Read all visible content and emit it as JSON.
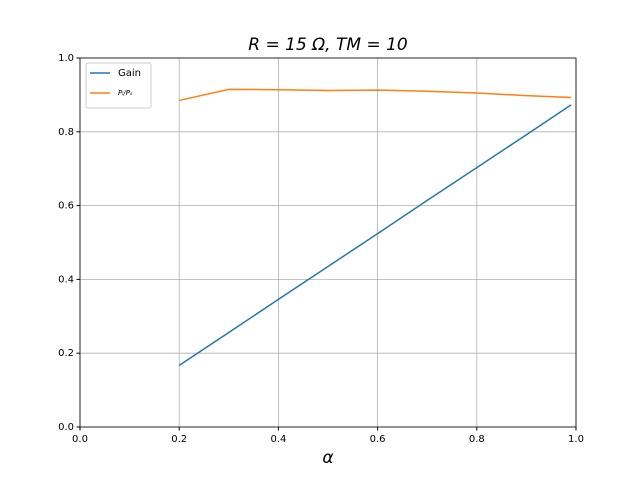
{
  "chart_data": {
    "type": "line",
    "title": "R = 15 Ω,  TM = 10",
    "x_label": "α",
    "x": [
      0.2,
      0.3,
      0.4,
      0.5,
      0.6,
      0.7,
      0.8,
      0.9,
      0.99
    ],
    "series": [
      {
        "name": "Gain",
        "color": "#1f77b4",
        "values": [
          0.167,
          0.256,
          0.346,
          0.435,
          0.524,
          0.614,
          0.703,
          0.792,
          0.873
        ]
      },
      {
        "name": "Pₗ/Pₛ",
        "color": "#ff7f0e",
        "values": [
          0.885,
          0.915,
          0.914,
          0.912,
          0.913,
          0.91,
          0.905,
          0.898,
          0.893
        ]
      }
    ],
    "xlim": [
      0,
      1
    ],
    "ylim": [
      0,
      1
    ],
    "xticks": [
      {
        "value": 0,
        "label": "0.0"
      },
      0.2,
      0.4,
      0.6,
      0.8,
      {
        "value": 1,
        "label": "1.0"
      }
    ],
    "yticks": [
      {
        "value": 0,
        "label": "0.0"
      },
      0.2,
      0.4,
      0.6,
      0.8,
      {
        "value": 1,
        "label": "1.0"
      }
    ],
    "grid": true,
    "legend": "upper-left"
  }
}
